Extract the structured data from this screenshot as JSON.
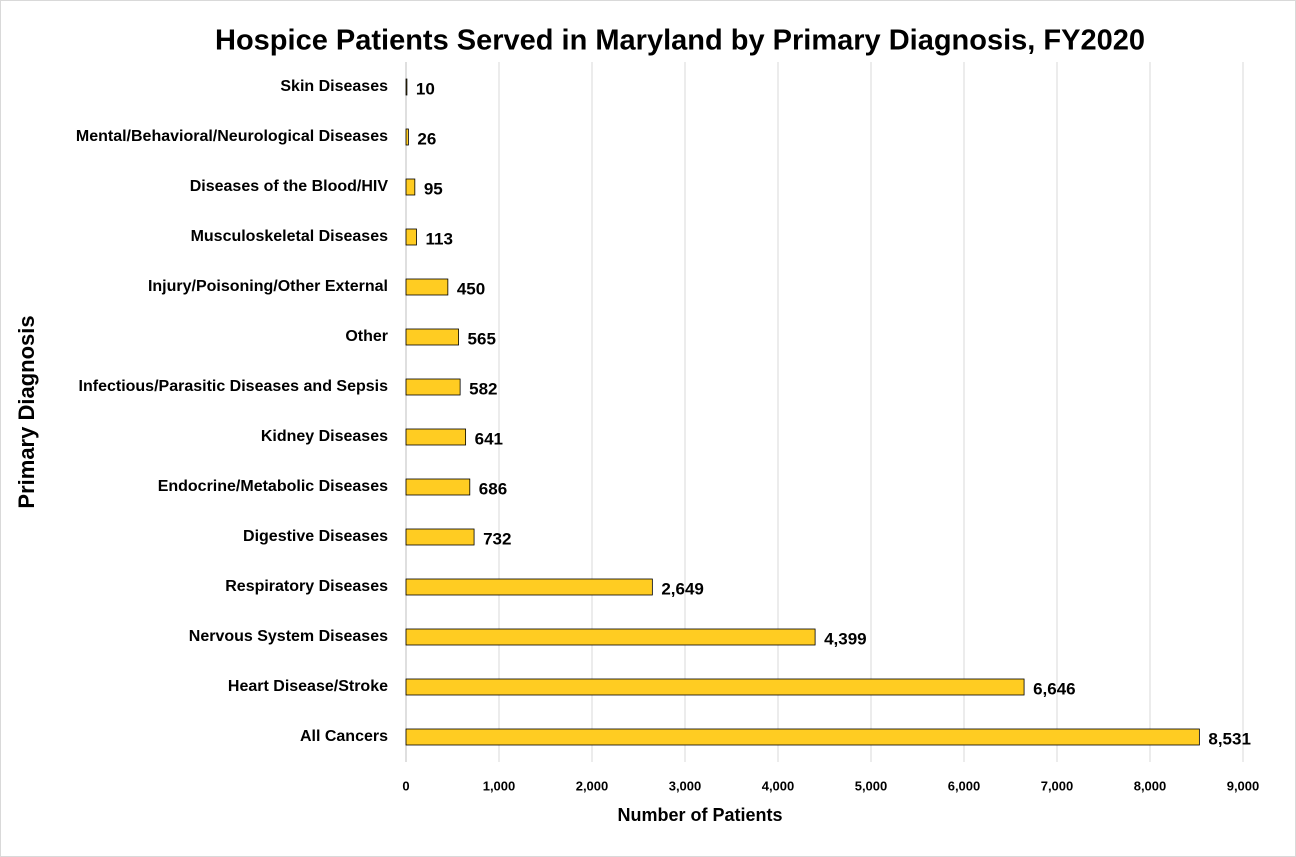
{
  "chart_data": {
    "type": "bar",
    "orientation": "horizontal",
    "title": "Hospice Patients Served in Maryland by Primary Diagnosis, FY2020",
    "x_label": "Number of Patients",
    "y_label": "Primary Diagnosis",
    "categories": [
      "Skin Diseases",
      "Mental/Behavioral/Neurological Diseases",
      "Diseases of the Blood/HIV",
      "Musculoskeletal Diseases",
      "Injury/Poisoning/Other External",
      "Other",
      "Infectious/Parasitic Diseases and Sepsis",
      "Kidney Diseases",
      "Endocrine/Metabolic Diseases",
      "Digestive Diseases",
      "Respiratory Diseases",
      "Nervous System Diseases",
      "Heart Disease/Stroke",
      "All Cancers"
    ],
    "values": [
      10,
      26,
      95,
      113,
      450,
      565,
      582,
      641,
      686,
      732,
      2649,
      4399,
      6646,
      8531
    ],
    "value_labels": [
      "10",
      "26",
      "95",
      "113",
      "450",
      "565",
      "582",
      "641",
      "686",
      "732",
      "2,649",
      "4,399",
      "6,646",
      "8,531"
    ],
    "color": "#FFCC22",
    "xlim": [
      0,
      9000
    ],
    "xticks": [
      0,
      {
        "value": 1000,
        "label": "1,000"
      },
      {
        "value": 2000,
        "label": "2,000"
      },
      {
        "value": 3000,
        "label": "3,000"
      },
      {
        "value": 4000,
        "label": "4,000"
      },
      {
        "value": 5000,
        "label": "5,000"
      },
      {
        "value": 6000,
        "label": "6,000"
      },
      {
        "value": 7000,
        "label": "7,000"
      },
      {
        "value": 8000,
        "label": "8,000"
      },
      {
        "value": 9000,
        "label": "9,000"
      }
    ],
    "grid": true
  }
}
